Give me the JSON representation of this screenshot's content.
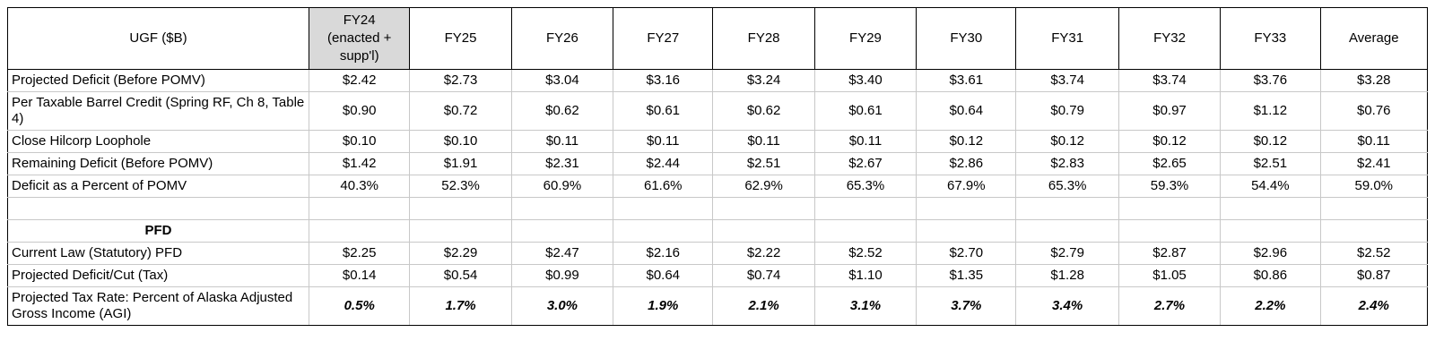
{
  "columns": [
    "UGF ($B)",
    "FY24\n(enacted +\nsupp'l)",
    "FY25",
    "FY26",
    "FY27",
    "FY28",
    "FY29",
    "FY30",
    "FY31",
    "FY32",
    "FY33",
    "Average"
  ],
  "rows": [
    {
      "label": "Projected Deficit (Before POMV)",
      "values": [
        "$2.42",
        "$2.73",
        "$3.04",
        "$3.16",
        "$3.24",
        "$3.40",
        "$3.61",
        "$3.74",
        "$3.74",
        "$3.76",
        "$3.28"
      ]
    },
    {
      "label": "Per Taxable Barrel Credit (Spring RF, Ch 8, Table 4)",
      "values": [
        "$0.90",
        "$0.72",
        "$0.62",
        "$0.61",
        "$0.62",
        "$0.61",
        "$0.64",
        "$0.79",
        "$0.97",
        "$1.12",
        "$0.76"
      ]
    },
    {
      "label": "Close Hilcorp Loophole",
      "values": [
        "$0.10",
        "$0.10",
        "$0.11",
        "$0.11",
        "$0.11",
        "$0.11",
        "$0.12",
        "$0.12",
        "$0.12",
        "$0.12",
        "$0.11"
      ]
    },
    {
      "label": "Remaining Deficit (Before POMV)",
      "values": [
        "$1.42",
        "$1.91",
        "$2.31",
        "$2.44",
        "$2.51",
        "$2.67",
        "$2.86",
        "$2.83",
        "$2.65",
        "$2.51",
        "$2.41"
      ]
    },
    {
      "label": "Deficit as a Percent of POMV",
      "values": [
        "40.3%",
        "52.3%",
        "60.9%",
        "61.6%",
        "62.9%",
        "65.3%",
        "67.9%",
        "65.3%",
        "59.3%",
        "54.4%",
        "59.0%"
      ]
    },
    {
      "label": "",
      "values": [
        "",
        "",
        "",
        "",
        "",
        "",
        "",
        "",
        "",
        "",
        ""
      ]
    },
    {
      "label": "PFD",
      "values": [
        "",
        "",
        "",
        "",
        "",
        "",
        "",
        "",
        "",
        "",
        ""
      ]
    },
    {
      "label": "Current Law (Statutory) PFD",
      "values": [
        "$2.25",
        "$2.29",
        "$2.47",
        "$2.16",
        "$2.22",
        "$2.52",
        "$2.70",
        "$2.79",
        "$2.87",
        "$2.96",
        "$2.52"
      ]
    },
    {
      "label": "Projected Deficit/Cut (Tax)",
      "values": [
        "$0.14",
        "$0.54",
        "$0.99",
        "$0.64",
        "$0.74",
        "$1.10",
        "$1.35",
        "$1.28",
        "$1.05",
        "$0.86",
        "$0.87"
      ]
    },
    {
      "label": "Projected Tax Rate: Percent of Alaska Adjusted Gross Income (AGI)",
      "values": [
        "0.5%",
        "1.7%",
        "3.0%",
        "1.9%",
        "2.1%",
        "3.1%",
        "3.7%",
        "3.4%",
        "2.7%",
        "2.2%",
        "2.4%"
      ]
    }
  ],
  "colors": {
    "header_highlight": "#d9d9d9",
    "grid": "#c8c8c8",
    "border": "#000000"
  }
}
